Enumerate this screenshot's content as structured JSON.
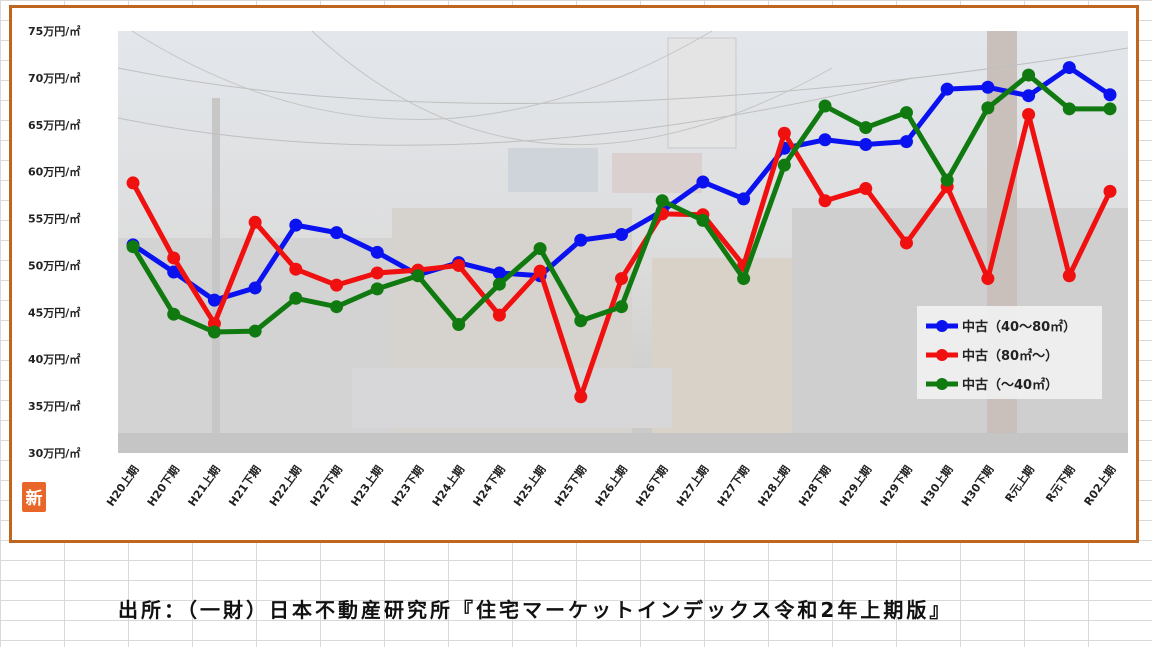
{
  "chart_data": {
    "type": "line",
    "categories": [
      "H20上期",
      "H20下期",
      "H21上期",
      "H21下期",
      "H22上期",
      "H22下期",
      "H23上期",
      "H23下期",
      "H24上期",
      "H24下期",
      "H25上期",
      "H25下期",
      "H26上期",
      "H26下期",
      "H27上期",
      "H27下期",
      "H28上期",
      "H28下期",
      "H29上期",
      "H29下期",
      "H30上期",
      "H30下期",
      "R元上期",
      "R元下期",
      "R02上期"
    ],
    "y_ticks": [
      {
        "value": 30,
        "label": "30万円/㎡"
      },
      {
        "value": 35,
        "label": "35万円/㎡"
      },
      {
        "value": 40,
        "label": "40万円/㎡"
      },
      {
        "value": 45,
        "label": "45万円/㎡"
      },
      {
        "value": 50,
        "label": "50万円/㎡"
      },
      {
        "value": 55,
        "label": "55万円/㎡"
      },
      {
        "value": 60,
        "label": "60万円/㎡"
      },
      {
        "value": 65,
        "label": "65万円/㎡"
      },
      {
        "value": 70,
        "label": "70万円/㎡"
      },
      {
        "value": 75,
        "label": "75万円/㎡"
      }
    ],
    "ylim": [
      30,
      75
    ],
    "legend_position": "right",
    "series": [
      {
        "name": "中古（40～80㎡）",
        "color": "#0a12f0",
        "values": [
          52.2,
          49.3,
          46.3,
          47.6,
          54.3,
          53.5,
          51.4,
          49.0,
          50.3,
          49.2,
          48.9,
          52.7,
          53.3,
          55.8,
          58.9,
          57.1,
          62.5,
          63.4,
          62.9,
          63.2,
          68.8,
          69.0,
          68.1,
          71.1,
          68.2
        ]
      },
      {
        "name": "中古（80㎡～）",
        "color": "#f01010",
        "values": [
          58.8,
          50.8,
          43.8,
          54.6,
          49.6,
          47.9,
          49.2,
          49.5,
          50.0,
          44.7,
          49.4,
          36.0,
          48.6,
          55.5,
          55.4,
          50.0,
          64.1,
          56.9,
          58.2,
          52.4,
          58.4,
          48.6,
          66.1,
          48.9,
          57.9
        ]
      },
      {
        "name": "中古（～40㎡）",
        "color": "#107a10",
        "values": [
          52.0,
          44.8,
          42.9,
          43.0,
          46.5,
          45.6,
          47.5,
          48.9,
          43.7,
          48.0,
          51.8,
          44.1,
          45.6,
          56.9,
          54.8,
          48.6,
          60.7,
          67.0,
          64.7,
          66.3,
          59.1,
          66.8,
          70.3,
          66.7,
          66.7
        ]
      }
    ]
  },
  "badge": {
    "label": "新"
  },
  "source": {
    "text": "出所：（一財）日本不動産研究所『住宅マーケットインデックス令和2年上期版』"
  }
}
